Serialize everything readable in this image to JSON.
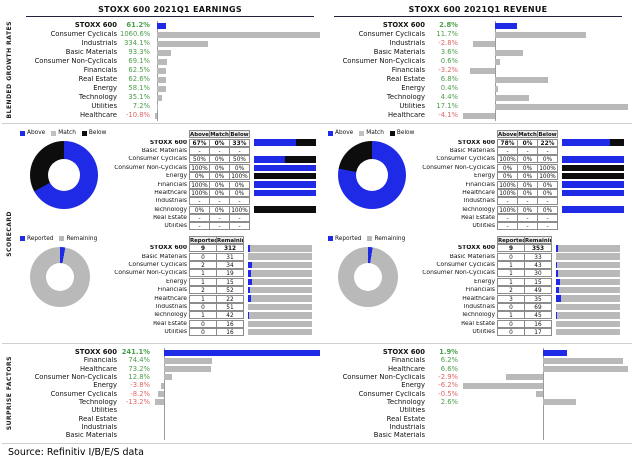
{
  "panel_titles": [
    "STOXX 600 2021Q1 EARNINGS",
    "STOXX 600 2021Q1 REVENUE"
  ],
  "section_labels": [
    "BLENDED GROWTH RATES",
    "SCORECARD",
    "SURPRISE FACTORS"
  ],
  "source_note": "Source: Refinitiv I/B/E/S data",
  "colors": {
    "above_blue": "#1f2ae6",
    "match_gray": "#bfbfbf",
    "below_black": "#0d0d0d",
    "neutral_gray": "#b9b9b9",
    "positive_green": "#4c9e4c",
    "negative_red": "#e06666"
  },
  "chart_data": [
    {
      "id": "earnings-blended-growth",
      "type": "bar",
      "orientation": "horizontal",
      "highlight": "STOXX 600",
      "categories": [
        "STOXX 600",
        "Consumer Cyclicals",
        "Industrials",
        "Basic Materials",
        "Consumer Non-Cyclicals",
        "Financials",
        "Real Estate",
        "Energy",
        "Technology",
        "Utilities",
        "Healthcare"
      ],
      "values": [
        61.2,
        1060.6,
        334.1,
        93.3,
        69.1,
        62.5,
        62.6,
        58.1,
        35.1,
        7.2,
        -10.8
      ],
      "labels": [
        "61.2%",
        "1060.6%",
        "334.1%",
        "93.3%",
        "69.1%",
        "62.5%",
        "62.6%",
        "58.1%",
        "35.1%",
        "7.2%",
        "-10.8%"
      ]
    },
    {
      "id": "revenue-blended-growth",
      "type": "bar",
      "orientation": "horizontal",
      "highlight": "STOXX 600",
      "categories": [
        "STOXX 600",
        "Consumer Cyclicals",
        "Industrials",
        "Basic Materials",
        "Consumer Non-Cyclicals",
        "Financials",
        "Real Estate",
        "Energy",
        "Technology",
        "Utilities",
        "Healthcare"
      ],
      "values": [
        2.8,
        11.7,
        -2.8,
        3.6,
        0.6,
        -3.2,
        6.8,
        0.4,
        4.4,
        17.1,
        -4.1
      ],
      "labels": [
        "2.8%",
        "11.7%",
        "-2.8%",
        "3.6%",
        "0.6%",
        "-3.2%",
        "6.8%",
        "0.4%",
        "4.4%",
        "17.1%",
        "-4.1%"
      ]
    },
    {
      "id": "earnings-beats-scorecard",
      "type": "table",
      "legend": [
        "Above",
        "Match",
        "Below"
      ],
      "col_headers": [
        "Above",
        "Match",
        "Below"
      ],
      "total": {
        "label": "STOXX 600",
        "cells": [
          "67%",
          "0%",
          "33%"
        ]
      },
      "rows": [
        {
          "label": "Basic Materials",
          "cells": [
            "-",
            "-",
            "-"
          ]
        },
        {
          "label": "Consumer Cyclicals",
          "cells": [
            "50%",
            "0%",
            "50%"
          ]
        },
        {
          "label": "Consumer Non-Cyclicals",
          "cells": [
            "100%",
            "0%",
            "0%"
          ]
        },
        {
          "label": "Energy",
          "cells": [
            "0%",
            "0%",
            "100%"
          ]
        },
        {
          "label": "Financials",
          "cells": [
            "100%",
            "0%",
            "0%"
          ]
        },
        {
          "label": "Healthcare",
          "cells": [
            "100%",
            "0%",
            "0%"
          ]
        },
        {
          "label": "Industrials",
          "cells": [
            "-",
            "-",
            "-"
          ]
        },
        {
          "label": "Technology",
          "cells": [
            "0%",
            "0%",
            "100%"
          ]
        },
        {
          "label": "Real Estate",
          "cells": [
            "-",
            "-",
            "-"
          ]
        },
        {
          "label": "Utilities",
          "cells": [
            "-",
            "-",
            "-"
          ]
        }
      ]
    },
    {
      "id": "revenue-beats-scorecard",
      "type": "table",
      "legend": [
        "Above",
        "Match",
        "Below"
      ],
      "col_headers": [
        "Above",
        "Match",
        "Below"
      ],
      "total": {
        "label": "STOXX 600",
        "cells": [
          "78%",
          "0%",
          "22%"
        ]
      },
      "rows": [
        {
          "label": "Basic Materials",
          "cells": [
            "-",
            "-",
            "-"
          ]
        },
        {
          "label": "Consumer Cyclicals",
          "cells": [
            "100%",
            "0%",
            "0%"
          ]
        },
        {
          "label": "Consumer Non-Cyclicals",
          "cells": [
            "0%",
            "0%",
            "100%"
          ]
        },
        {
          "label": "Energy",
          "cells": [
            "0%",
            "0%",
            "100%"
          ]
        },
        {
          "label": "Financials",
          "cells": [
            "100%",
            "0%",
            "0%"
          ]
        },
        {
          "label": "Healthcare",
          "cells": [
            "100%",
            "0%",
            "0%"
          ]
        },
        {
          "label": "Industrials",
          "cells": [
            "-",
            "-",
            "-"
          ]
        },
        {
          "label": "Technology",
          "cells": [
            "100%",
            "0%",
            "0%"
          ]
        },
        {
          "label": "Real Estate",
          "cells": [
            "-",
            "-",
            "-"
          ]
        },
        {
          "label": "Utilities",
          "cells": [
            "-",
            "-",
            "-"
          ]
        }
      ]
    },
    {
      "id": "earnings-reported",
      "type": "table",
      "legend": [
        "Reported",
        "Remaining"
      ],
      "col_headers": [
        "Reported",
        "Remaining"
      ],
      "total": {
        "label": "STOXX 600",
        "cells": [
          "9",
          "312"
        ]
      },
      "rows": [
        {
          "label": "Basic Materials",
          "cells": [
            "0",
            "31"
          ]
        },
        {
          "label": "Consumer Cyclicals",
          "cells": [
            "2",
            "34"
          ]
        },
        {
          "label": "Consumer Non-Cyclicals",
          "cells": [
            "1",
            "19"
          ]
        },
        {
          "label": "Energy",
          "cells": [
            "1",
            "15"
          ]
        },
        {
          "label": "Financials",
          "cells": [
            "2",
            "52"
          ]
        },
        {
          "label": "Healthcare",
          "cells": [
            "1",
            "22"
          ]
        },
        {
          "label": "Industrials",
          "cells": [
            "0",
            "51"
          ]
        },
        {
          "label": "Technology",
          "cells": [
            "1",
            "42"
          ]
        },
        {
          "label": "Real Estate",
          "cells": [
            "0",
            "16"
          ]
        },
        {
          "label": "Utilities",
          "cells": [
            "0",
            "16"
          ]
        }
      ]
    },
    {
      "id": "revenue-reported",
      "type": "table",
      "legend": [
        "Reported",
        "Remaining"
      ],
      "col_headers": [
        "Reported",
        "Remaining"
      ],
      "total": {
        "label": "STOXX 600",
        "cells": [
          "9",
          "353"
        ]
      },
      "rows": [
        {
          "label": "Basic Materials",
          "cells": [
            "0",
            "33"
          ]
        },
        {
          "label": "Consumer Cyclicals",
          "cells": [
            "1",
            "43"
          ]
        },
        {
          "label": "Consumer Non-Cyclicals",
          "cells": [
            "1",
            "30"
          ]
        },
        {
          "label": "Energy",
          "cells": [
            "1",
            "15"
          ]
        },
        {
          "label": "Financials",
          "cells": [
            "2",
            "49"
          ]
        },
        {
          "label": "Healthcare",
          "cells": [
            "3",
            "35"
          ]
        },
        {
          "label": "Industrials",
          "cells": [
            "0",
            "69"
          ]
        },
        {
          "label": "Technology",
          "cells": [
            "1",
            "45"
          ]
        },
        {
          "label": "Real Estate",
          "cells": [
            "0",
            "16"
          ]
        },
        {
          "label": "Utilities",
          "cells": [
            "0",
            "17"
          ]
        }
      ]
    },
    {
      "id": "earnings-surprise",
      "type": "bar",
      "orientation": "horizontal",
      "highlight": "STOXX 600",
      "categories": [
        "STOXX 600",
        "Financials",
        "Healthcare",
        "Consumer Non-Cyclicals",
        "Energy",
        "Consumer Cyclicals",
        "Technology",
        "Utilities",
        "Real Estate",
        "Industrials",
        "Basic Materials"
      ],
      "values": [
        241.1,
        74.4,
        73.2,
        12.8,
        -3.8,
        -8.2,
        -13.2,
        null,
        null,
        null,
        null
      ],
      "labels": [
        "241.1%",
        "74.4%",
        "73.2%",
        "12.8%",
        "-3.8%",
        "-8.2%",
        "-13.2%",
        "",
        "",
        "",
        ""
      ]
    },
    {
      "id": "revenue-surprise",
      "type": "bar",
      "orientation": "horizontal",
      "highlight": "STOXX 600",
      "categories": [
        "STOXX 600",
        "Financials",
        "Healthcare",
        "Consumer Non-Cyclicals",
        "Energy",
        "Consumer Cyclicals",
        "Technology",
        "Utilities",
        "Real Estate",
        "Industrials",
        "Basic Materials"
      ],
      "values": [
        1.9,
        6.2,
        6.6,
        -2.9,
        -6.2,
        -0.5,
        2.6,
        null,
        null,
        null,
        null
      ],
      "labels": [
        "1.9%",
        "6.2%",
        "6.6%",
        "-2.9%",
        "-6.2%",
        "-0.5%",
        "2.6%",
        "",
        "",
        "",
        ""
      ]
    }
  ]
}
